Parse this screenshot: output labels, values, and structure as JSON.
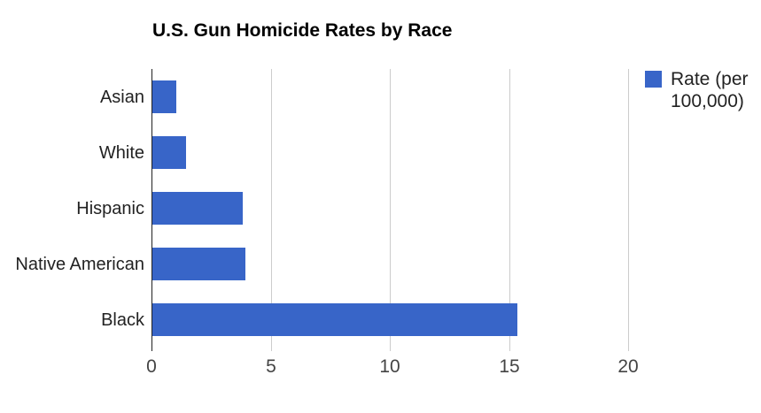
{
  "title": "U.S. Gun Homicide Rates by Race",
  "edge_artifact": ":",
  "chart_data": {
    "type": "bar",
    "orientation": "horizontal",
    "title": "U.S. Gun Homicide Rates by Race",
    "categories": [
      "Asian",
      "White",
      "Hispanic",
      "Native American",
      "Black"
    ],
    "series": [
      {
        "name": "Rate (per 100,000)",
        "values": [
          1.0,
          1.4,
          3.8,
          3.9,
          15.3
        ]
      }
    ],
    "xlabel": "",
    "ylabel": "",
    "xlim": [
      0,
      20
    ],
    "xticks": [
      0,
      5,
      10,
      15,
      20
    ],
    "grid": "vertical-gridlines-on",
    "legend_position": "right",
    "bar_color": "#3865C8",
    "gridline_color": "#CCCCCC",
    "axis_line_color": "#222222",
    "tick_label_color": "#444444",
    "category_label_color": "#222222"
  }
}
